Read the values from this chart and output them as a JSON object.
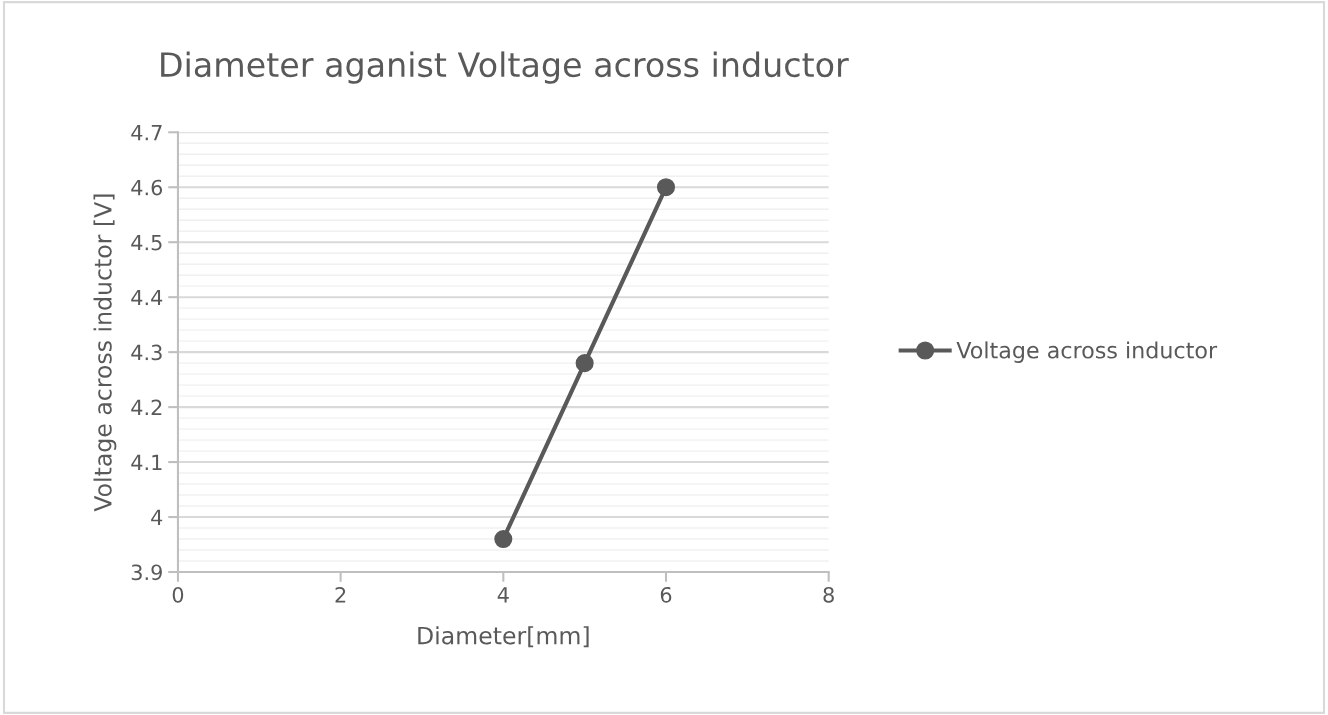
{
  "chart_data": {
    "type": "line",
    "title": "Diameter aganist Voltage across inductor",
    "xlabel": "Diameter[mm]",
    "ylabel": "Voltage across inductor [V]",
    "x": [
      4,
      5,
      6
    ],
    "series": [
      {
        "name": "Voltage across inductor",
        "color": "#595959",
        "values": [
          3.96,
          4.28,
          4.6
        ]
      }
    ],
    "xlim": [
      0,
      8
    ],
    "xticks": [
      0,
      2,
      4,
      6,
      8
    ],
    "ylim": [
      3.9,
      4.7
    ],
    "yticks": [
      3.9,
      4,
      4.1,
      4.2,
      4.3,
      4.4,
      4.5,
      4.6,
      4.7
    ],
    "grid": "y",
    "legend": "right",
    "marker": "circle",
    "line_style": "solid"
  }
}
